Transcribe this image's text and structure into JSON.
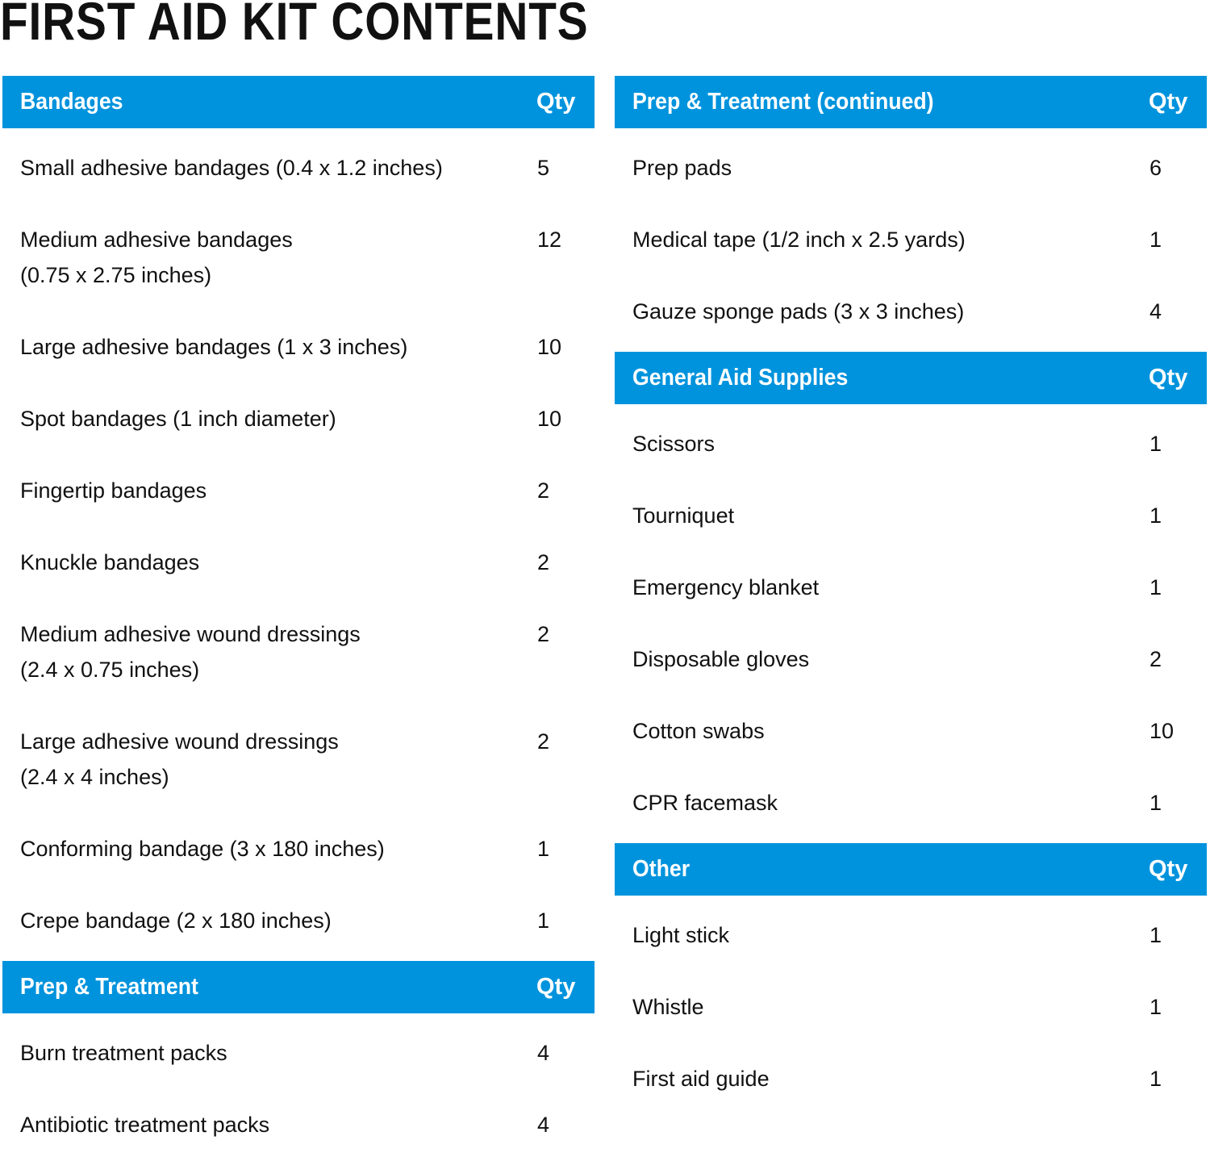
{
  "title": "FIRST AID KIT CONTENTS",
  "accent_color": "#0093dd",
  "columns": [
    {
      "sections": [
        {
          "name": "Bandages",
          "qty_label": "Qty",
          "items": [
            {
              "name": "Small adhesive bandages (0.4 x 1.2 inches)",
              "qty": "5"
            },
            {
              "name": "Medium adhesive bandages\n(0.75 x 2.75 inches)",
              "qty": "12"
            },
            {
              "name": "Large adhesive bandages (1 x 3 inches)",
              "qty": "10"
            },
            {
              "name": "Spot bandages (1 inch diameter)",
              "qty": "10"
            },
            {
              "name": "Fingertip bandages",
              "qty": "2"
            },
            {
              "name": "Knuckle bandages",
              "qty": "2"
            },
            {
              "name": "Medium adhesive wound dressings\n(2.4 x 0.75 inches)",
              "qty": "2"
            },
            {
              "name": "Large adhesive wound dressings\n(2.4 x 4 inches)",
              "qty": "2"
            },
            {
              "name": "Conforming bandage (3 x 180 inches)",
              "qty": "1"
            },
            {
              "name": "Crepe bandage (2 x 180 inches)",
              "qty": "1"
            }
          ]
        },
        {
          "name": "Prep & Treatment",
          "qty_label": "Qty",
          "items": [
            {
              "name": "Burn treatment packs",
              "qty": "4"
            },
            {
              "name": "Antibiotic treatment packs",
              "qty": "4"
            }
          ]
        }
      ]
    },
    {
      "sections": [
        {
          "name": "Prep & Treatment (continued)",
          "qty_label": "Qty",
          "items": [
            {
              "name": "Prep pads",
              "qty": "6"
            },
            {
              "name": "Medical tape (1/2 inch x 2.5 yards)",
              "qty": "1"
            },
            {
              "name": "Gauze sponge pads (3 x 3 inches)",
              "qty": "4"
            }
          ]
        },
        {
          "name": "General Aid Supplies",
          "qty_label": "Qty",
          "items": [
            {
              "name": "Scissors",
              "qty": "1"
            },
            {
              "name": "Tourniquet",
              "qty": "1"
            },
            {
              "name": "Emergency blanket",
              "qty": "1"
            },
            {
              "name": "Disposable gloves",
              "qty": "2"
            },
            {
              "name": "Cotton swabs",
              "qty": "10"
            },
            {
              "name": "CPR facemask",
              "qty": "1"
            }
          ]
        },
        {
          "name": "Other",
          "qty_label": "Qty",
          "items": [
            {
              "name": "Light stick",
              "qty": "1"
            },
            {
              "name": "Whistle",
              "qty": "1"
            },
            {
              "name": "First aid guide",
              "qty": "1"
            }
          ]
        }
      ]
    }
  ]
}
